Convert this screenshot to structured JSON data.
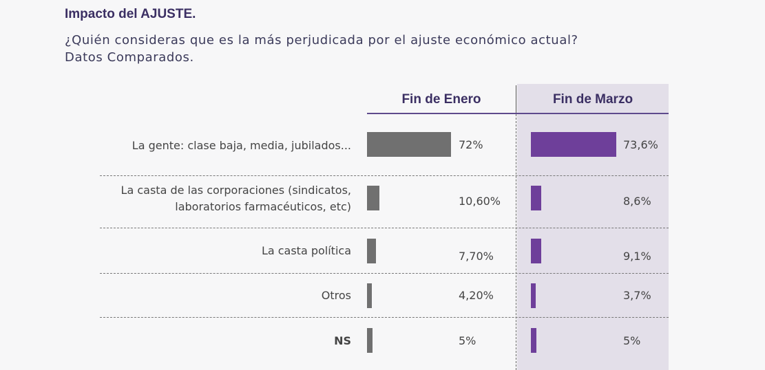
{
  "title": "Impacto del AJUSTE.",
  "subtitle": [
    "¿Quién consideras que es la más perjudicada por el ajuste económico actual?",
    "Datos Comparados."
  ],
  "chart_data": {
    "type": "bar",
    "orientation": "horizontal",
    "categories": [
      "La gente: clase baja, media, jubilados...",
      "La casta de las corporaciones (sindicatos, laboratorios farmacéuticos, etc)",
      "La casta política",
      "Otros",
      "NS"
    ],
    "series": [
      {
        "name": "Fin de Enero",
        "values": [
          72,
          10.6,
          7.7,
          4.2,
          5
        ],
        "labels": [
          "72%",
          "10,60%",
          "7,70%",
          "4,20%",
          "5%"
        ],
        "color": "#707070"
      },
      {
        "name": "Fin de Marzo",
        "values": [
          73.6,
          8.6,
          9.1,
          3.7,
          5
        ],
        "labels": [
          "73,6%",
          "8,6%",
          "9,1%",
          "3,7%",
          "5%"
        ],
        "color": "#6e3f9a"
      }
    ],
    "unit": "%"
  }
}
